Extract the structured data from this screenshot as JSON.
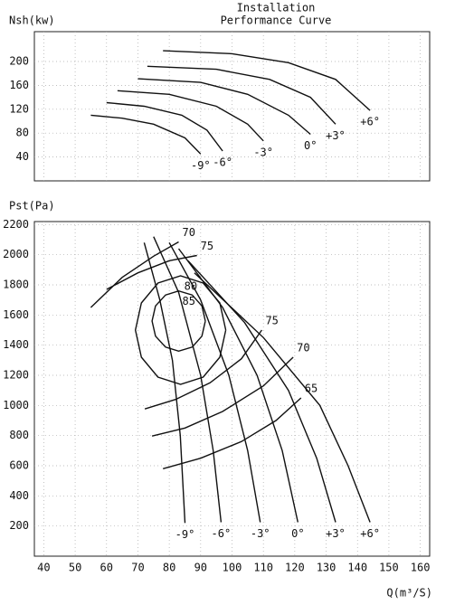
{
  "chart_data": [
    {
      "type": "line",
      "title": "Installation",
      "subtitle": "Performance Curve",
      "ylabel": "Nsh(kw)",
      "xlim": [
        37,
        163
      ],
      "xticks": [
        40,
        50,
        60,
        70,
        80,
        90,
        100,
        110,
        120,
        130,
        140,
        150,
        160
      ],
      "ylim": [
        0,
        250
      ],
      "yticks": [
        40,
        80,
        120,
        160,
        200
      ],
      "grid": true,
      "series": [
        {
          "name": "-9°",
          "color": "#111111",
          "x": [
            55,
            65,
            75,
            85,
            90
          ],
          "values": [
            110,
            105,
            95,
            72,
            45
          ]
        },
        {
          "name": "-6°",
          "color": "#111111",
          "x": [
            60,
            72,
            84,
            92,
            97
          ],
          "values": [
            131,
            125,
            110,
            85,
            50
          ]
        },
        {
          "name": "-3°",
          "color": "#111111",
          "x": [
            63.5,
            80,
            95,
            105,
            110
          ],
          "values": [
            151,
            145,
            125,
            95,
            67
          ]
        },
        {
          "name": "0°",
          "color": "#111111",
          "x": [
            70,
            90,
            105,
            118,
            125
          ],
          "values": [
            171,
            165,
            145,
            110,
            78
          ]
        },
        {
          "name": "+3°",
          "color": "#111111",
          "x": [
            73,
            95,
            112,
            125,
            133
          ],
          "values": [
            192,
            187,
            170,
            140,
            95
          ]
        },
        {
          "name": "+6°",
          "color": "#111111",
          "x": [
            78,
            100,
            118,
            133,
            144
          ],
          "values": [
            218,
            213,
            198,
            170,
            118
          ]
        }
      ]
    },
    {
      "type": "line",
      "ylabel": "Pst(Pa)",
      "xlabel": "Q(m³/S)",
      "xlim": [
        37,
        163
      ],
      "xticks": [
        40,
        50,
        60,
        70,
        80,
        90,
        100,
        110,
        120,
        130,
        140,
        150,
        160
      ],
      "ylim": [
        0,
        2220
      ],
      "yticks": [
        200,
        400,
        600,
        800,
        1000,
        1200,
        1400,
        1600,
        1800,
        2000,
        2200
      ],
      "grid": true,
      "series": [
        {
          "name": "-9°",
          "color": "#111111",
          "x": [
            72,
            77,
            81,
            83.5,
            85
          ],
          "values": [
            2080,
            1700,
            1300,
            800,
            220
          ]
        },
        {
          "name": "-6°",
          "color": "#111111",
          "x": [
            75,
            83,
            90,
            94,
            96.5
          ],
          "values": [
            2120,
            1750,
            1200,
            700,
            225
          ]
        },
        {
          "name": "-3°",
          "color": "#111111",
          "x": [
            80,
            90,
            99,
            105,
            109
          ],
          "values": [
            2080,
            1700,
            1200,
            700,
            225
          ]
        },
        {
          "name": "0°",
          "color": "#111111",
          "x": [
            83,
            97,
            108,
            116,
            121
          ],
          "values": [
            2040,
            1650,
            1200,
            700,
            225
          ]
        },
        {
          "name": "+3°",
          "color": "#111111",
          "x": [
            86,
            104,
            118,
            127,
            133
          ],
          "values": [
            1960,
            1550,
            1100,
            650,
            225
          ]
        },
        {
          "name": "+6°",
          "color": "#111111",
          "x": [
            88,
            110,
            128,
            137,
            144
          ],
          "values": [
            1880,
            1450,
            1000,
            600,
            225
          ]
        },
        {
          "name": "70",
          "color": "#111111",
          "x": [
            55,
            65,
            75,
            83,
            null,
            74.5,
            85,
            97,
            110,
            119.5
          ],
          "values": [
            1650,
            1850,
            1990,
            2085,
            null,
            797,
            850,
            960,
            1130,
            1320
          ]
        },
        {
          "name": "75",
          "color": "#111111",
          "x": [
            60,
            70,
            80,
            88.8,
            null,
            72.2,
            82,
            93,
            103,
            109.5
          ],
          "values": [
            1770,
            1880,
            1960,
            1995,
            null,
            977,
            1040,
            1150,
            1310,
            1500
          ]
        },
        {
          "name": "65",
          "color": "#111111",
          "x": [
            78,
            90,
            103,
            114,
            122
          ],
          "values": [
            580,
            650,
            760,
            900,
            1050
          ]
        },
        {
          "name": "80",
          "color": "#111111",
          "x": [
            98.0,
            96.1,
            90.8,
            83.6,
            76.4,
            71.1,
            69.2,
            71.1,
            76.4,
            83.6,
            90.8,
            96.1,
            98.0
          ],
          "values": [
            1500,
            1680,
            1812,
            1860,
            1812,
            1680,
            1500,
            1320,
            1188,
            1140,
            1188,
            1320,
            1500
          ]
        },
        {
          "name": "85",
          "color": "#111111",
          "x": [
            91.5,
            90.4,
            87.3,
            83,
            78.8,
            75.6,
            74.5,
            75.6,
            78.8,
            83,
            87.3,
            90.4,
            91.5
          ],
          "values": [
            1560,
            1660,
            1733,
            1760,
            1733,
            1660,
            1560,
            1460,
            1387,
            1360,
            1387,
            1460,
            1560
          ]
        }
      ]
    }
  ]
}
